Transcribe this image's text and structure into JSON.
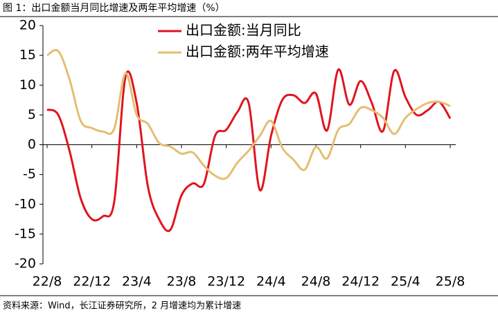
{
  "chart_data": {
    "type": "line",
    "title": "图 1：出口金额当月同比增速及两年平均增速（%）",
    "source": "资料来源：Wind，长江证券研究所，2 月增速均为累计增速",
    "categories": [
      "22/8",
      null,
      null,
      null,
      "22/12",
      null,
      null,
      null,
      "23/4",
      null,
      null,
      null,
      "23/8",
      null,
      null,
      null,
      "23/12",
      null,
      null,
      null,
      "24/4",
      null,
      null,
      null,
      "24/8",
      null,
      null,
      null,
      "24/12",
      null,
      null,
      null,
      "25/4",
      null,
      null,
      null,
      "25/8"
    ],
    "series": [
      {
        "name": "出口金额:当月同比",
        "color": "#e0141e",
        "values": [
          5.9,
          5.0,
          -1,
          -9,
          -12.5,
          -12,
          -9.5,
          11.4,
          7,
          -7,
          -12.5,
          -14.3,
          -8.5,
          -6.5,
          -6.6,
          1.5,
          2.5,
          5.5,
          7.0,
          -7.6,
          1.5,
          7.5,
          8.3,
          7.0,
          8.6,
          2.4,
          12.6,
          6.7,
          10.7,
          7,
          2.3,
          12.4,
          8,
          5.0,
          5.8,
          7.2,
          4.4
        ]
      },
      {
        "name": "出口金额:两年平均增速",
        "color": "#e5bd72",
        "values": [
          15,
          15.7,
          11,
          4,
          2.8,
          2.2,
          2.7,
          12,
          5,
          3.5,
          0.3,
          -0.3,
          -1.5,
          -1.3,
          -3.5,
          -5.2,
          -5.6,
          -3,
          -1,
          1.5,
          4,
          -0.5,
          -2.5,
          -4.2,
          -0.4,
          -2.3,
          2.5,
          3.5,
          6.2,
          5.8,
          4.5,
          1.8,
          4.5,
          6.0,
          7.0,
          7.2,
          6.5
        ]
      }
    ],
    "ylim": [
      -20,
      20
    ],
    "yticks": [
      -20,
      -15,
      -10,
      -5,
      0,
      5,
      10,
      15,
      20
    ]
  }
}
